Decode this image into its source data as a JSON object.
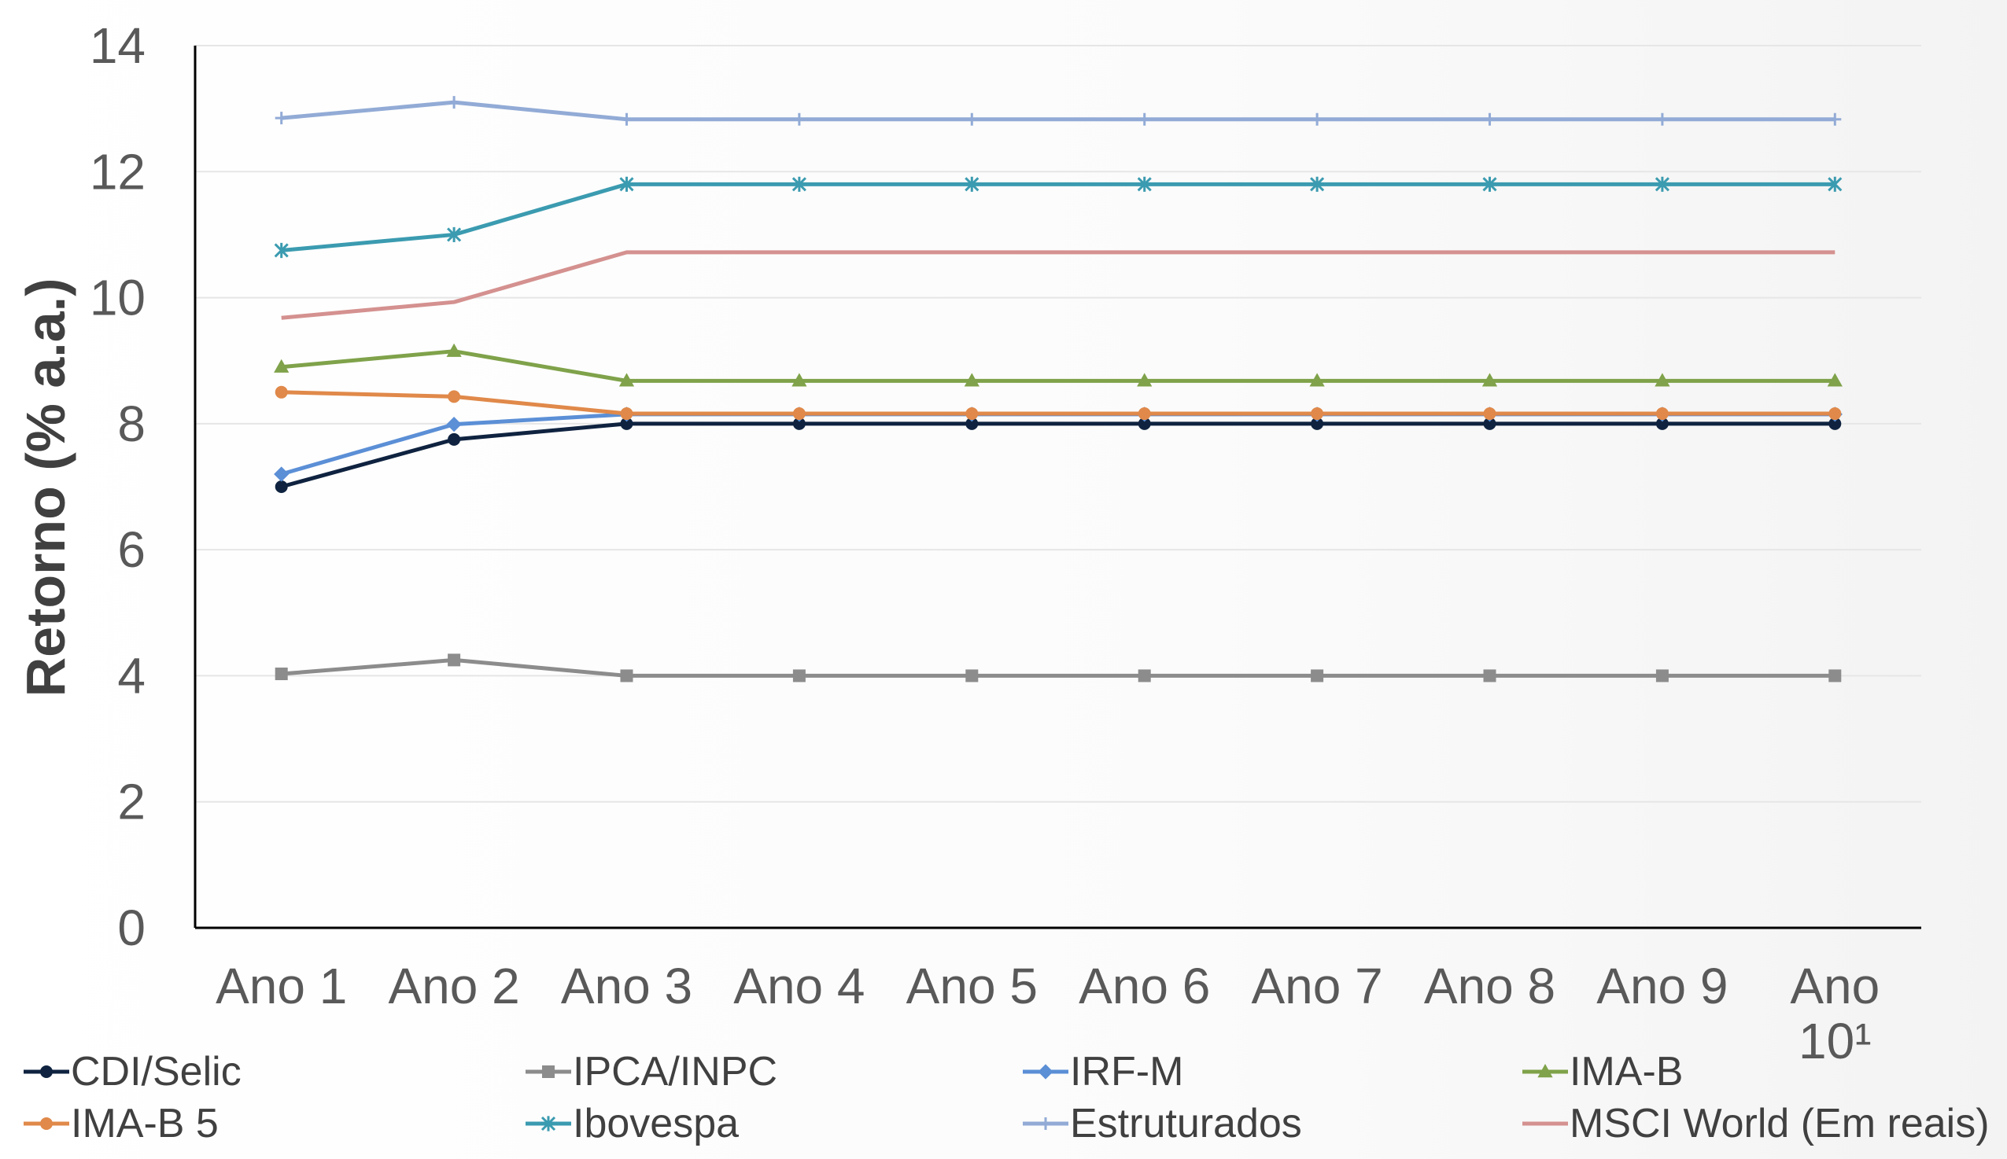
{
  "chart_data": {
    "type": "line",
    "ylabel": "Retorno (% a.a.)",
    "xlabel": "",
    "ylim": [
      0,
      14
    ],
    "yticks": [
      0,
      2,
      4,
      6,
      8,
      10,
      12,
      14
    ],
    "categories": [
      [
        "Ano 1"
      ],
      [
        "Ano 2"
      ],
      [
        "Ano 3"
      ],
      [
        "Ano 4"
      ],
      [
        "Ano 5"
      ],
      [
        "Ano 6"
      ],
      [
        "Ano 7"
      ],
      [
        "Ano 8"
      ],
      [
        "Ano 9"
      ],
      [
        "Ano",
        "10¹"
      ]
    ],
    "grid": "horizontal",
    "legend_position": "bottom",
    "series": [
      {
        "name": "CDI/Selic",
        "color": "#0f2340",
        "marker": "circle",
        "values": [
          7.0,
          7.75,
          8.0,
          8.0,
          8.0,
          8.0,
          8.0,
          8.0,
          8.0,
          8.0
        ]
      },
      {
        "name": "IPCA/INPC",
        "color": "#8c8c8c",
        "marker": "square",
        "values": [
          4.03,
          4.25,
          4.0,
          4.0,
          4.0,
          4.0,
          4.0,
          4.0,
          4.0,
          4.0
        ]
      },
      {
        "name": "IRF-M",
        "color": "#5b8fd6",
        "marker": "diamond",
        "values": [
          7.2,
          7.99,
          8.15,
          8.15,
          8.15,
          8.15,
          8.15,
          8.15,
          8.15,
          8.15
        ]
      },
      {
        "name": "IMA-B",
        "color": "#7fa24a",
        "marker": "triangle",
        "values": [
          8.9,
          9.15,
          8.68,
          8.68,
          8.68,
          8.68,
          8.68,
          8.68,
          8.68,
          8.68
        ]
      },
      {
        "name": "IMA-B 5",
        "color": "#e0894a",
        "marker": "circle",
        "values": [
          8.5,
          8.43,
          8.16,
          8.16,
          8.16,
          8.16,
          8.16,
          8.16,
          8.16,
          8.16
        ]
      },
      {
        "name": "Ibovespa",
        "color": "#3b9bb0",
        "marker": "star",
        "values": [
          10.75,
          11.0,
          11.8,
          11.8,
          11.8,
          11.8,
          11.8,
          11.8,
          11.8,
          11.8
        ]
      },
      {
        "name": "Estruturados",
        "color": "#92abd6",
        "marker": "plus",
        "values": [
          12.85,
          13.1,
          12.83,
          12.83,
          12.83,
          12.83,
          12.83,
          12.83,
          12.83,
          12.83
        ]
      },
      {
        "name": "MSCI World (Em reais)",
        "color": "#d4918f",
        "marker": "none",
        "values": [
          9.68,
          9.93,
          10.72,
          10.72,
          10.72,
          10.72,
          10.72,
          10.72,
          10.72,
          10.72
        ]
      }
    ]
  }
}
